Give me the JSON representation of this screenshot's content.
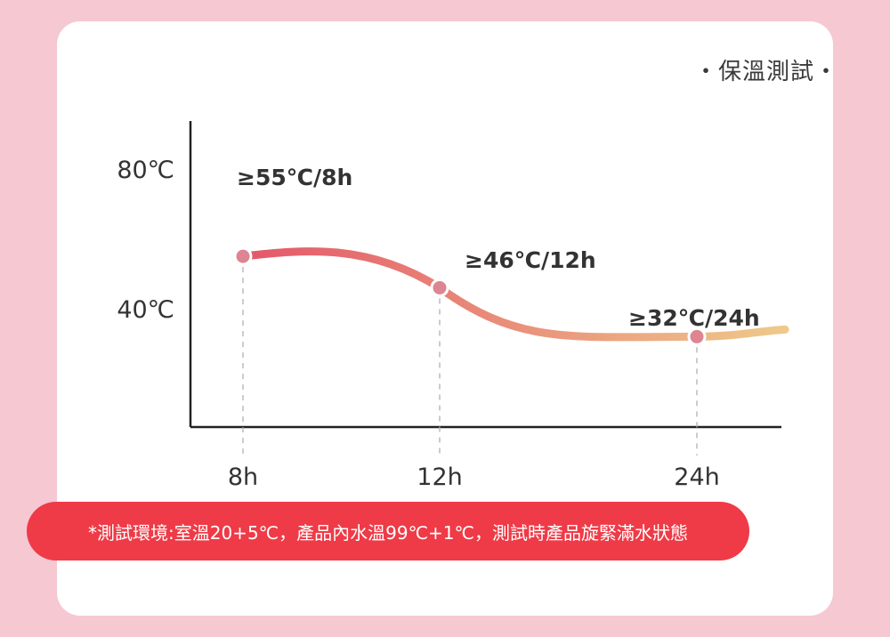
{
  "title": "・保溫測試・",
  "chart_data": {
    "type": "line",
    "title": "・保溫測試・",
    "y_ticks": [
      "80℃",
      "40℃"
    ],
    "x_ticks": [
      "8h",
      "12h",
      "24h"
    ],
    "points": [
      {
        "x": "8h",
        "value": 55,
        "label": "≥55℃/8h"
      },
      {
        "x": "12h",
        "value": 46,
        "label": "≥46℃/12h"
      },
      {
        "x": "24h",
        "value": 32,
        "label": "≥32℃/24h"
      }
    ],
    "colors": {
      "curve_start": "#e4576a",
      "curve_end": "#efc98a",
      "marker": "#dd8592",
      "axis": "#222222",
      "guide": "#b0b0b0"
    }
  },
  "note": "*測試環境:室溫20+5℃，產品內水溫99℃+1℃，測試時產品旋緊滿水狀態"
}
